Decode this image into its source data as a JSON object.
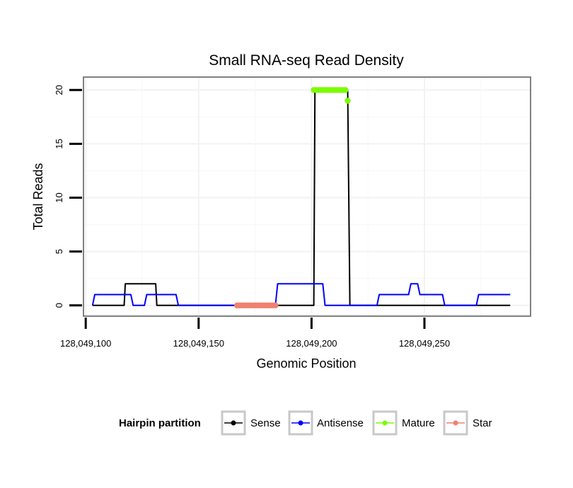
{
  "chart_data": {
    "type": "line",
    "title": "Small RNA-seq Read Density",
    "xlabel": "Genomic Position",
    "ylabel": "Total Reads",
    "xlim": [
      128049099,
      128049297
    ],
    "ylim": [
      -1,
      21.2
    ],
    "x_ticks": [
      128049100,
      128049150,
      128049200,
      128049250
    ],
    "x_tick_labels": [
      "128,049,100",
      "128,049,150",
      "128,049,200",
      "128,049,250"
    ],
    "y_ticks": [
      0,
      5,
      10,
      15,
      20
    ],
    "y_tick_labels": [
      "0",
      "5",
      "10",
      "15",
      "20"
    ],
    "grid": true,
    "legend": {
      "title": "Hairpin partition",
      "position": "bottom",
      "entries": [
        {
          "name": "Sense",
          "color": "#000000"
        },
        {
          "name": "Antisense",
          "color": "#0000ff"
        },
        {
          "name": "Mature",
          "color": "#7cfc00"
        },
        {
          "name": "Star",
          "color": "#f08070"
        }
      ]
    },
    "series": [
      {
        "name": "Sense",
        "color": "#000000",
        "kind": "line",
        "x": [
          128049103,
          128049117,
          128049117.5,
          128049131,
          128049131.5,
          128049201,
          128049201.5,
          128049216,
          128049217,
          128049288
        ],
        "y": [
          0,
          0,
          2,
          2,
          0,
          0,
          20,
          20,
          0,
          0
        ]
      },
      {
        "name": "Antisense",
        "color": "#0000ff",
        "kind": "line",
        "x": [
          128049103,
          128049104,
          128049120,
          128049121,
          128049126,
          128049127,
          128049140,
          128049141,
          128049184,
          128049185,
          128049205,
          128049206,
          128049229,
          128049230,
          128049243,
          128049244,
          128049247,
          128049248,
          128049258,
          128049259,
          128049273,
          128049274,
          128049288
        ],
        "y": [
          0,
          1,
          1,
          0,
          0,
          1,
          1,
          0,
          0,
          2,
          2,
          0,
          0,
          1,
          1,
          2,
          2,
          1,
          1,
          0,
          0,
          1,
          1
        ]
      },
      {
        "name": "Mature",
        "color": "#7cfc00",
        "kind": "points",
        "x": [
          128049201,
          128049202,
          128049203,
          128049204,
          128049205,
          128049206,
          128049207,
          128049208,
          128049209,
          128049210,
          128049211,
          128049212,
          128049213,
          128049214,
          128049215,
          128049216
        ],
        "y": [
          20,
          20,
          20,
          20,
          20,
          20,
          20,
          20,
          20,
          20,
          20,
          20,
          20,
          20,
          20,
          19
        ]
      },
      {
        "name": "Star",
        "color": "#f08070",
        "kind": "points",
        "x": [
          128049167,
          128049168,
          128049169,
          128049170,
          128049171,
          128049172,
          128049173,
          128049174,
          128049175,
          128049176,
          128049177,
          128049178,
          128049179,
          128049180,
          128049181,
          128049182,
          128049183,
          128049184
        ],
        "y": [
          0,
          0,
          0,
          0,
          0,
          0,
          0,
          0,
          0,
          0,
          0,
          0,
          0,
          0,
          0,
          0,
          0,
          0
        ]
      }
    ]
  }
}
